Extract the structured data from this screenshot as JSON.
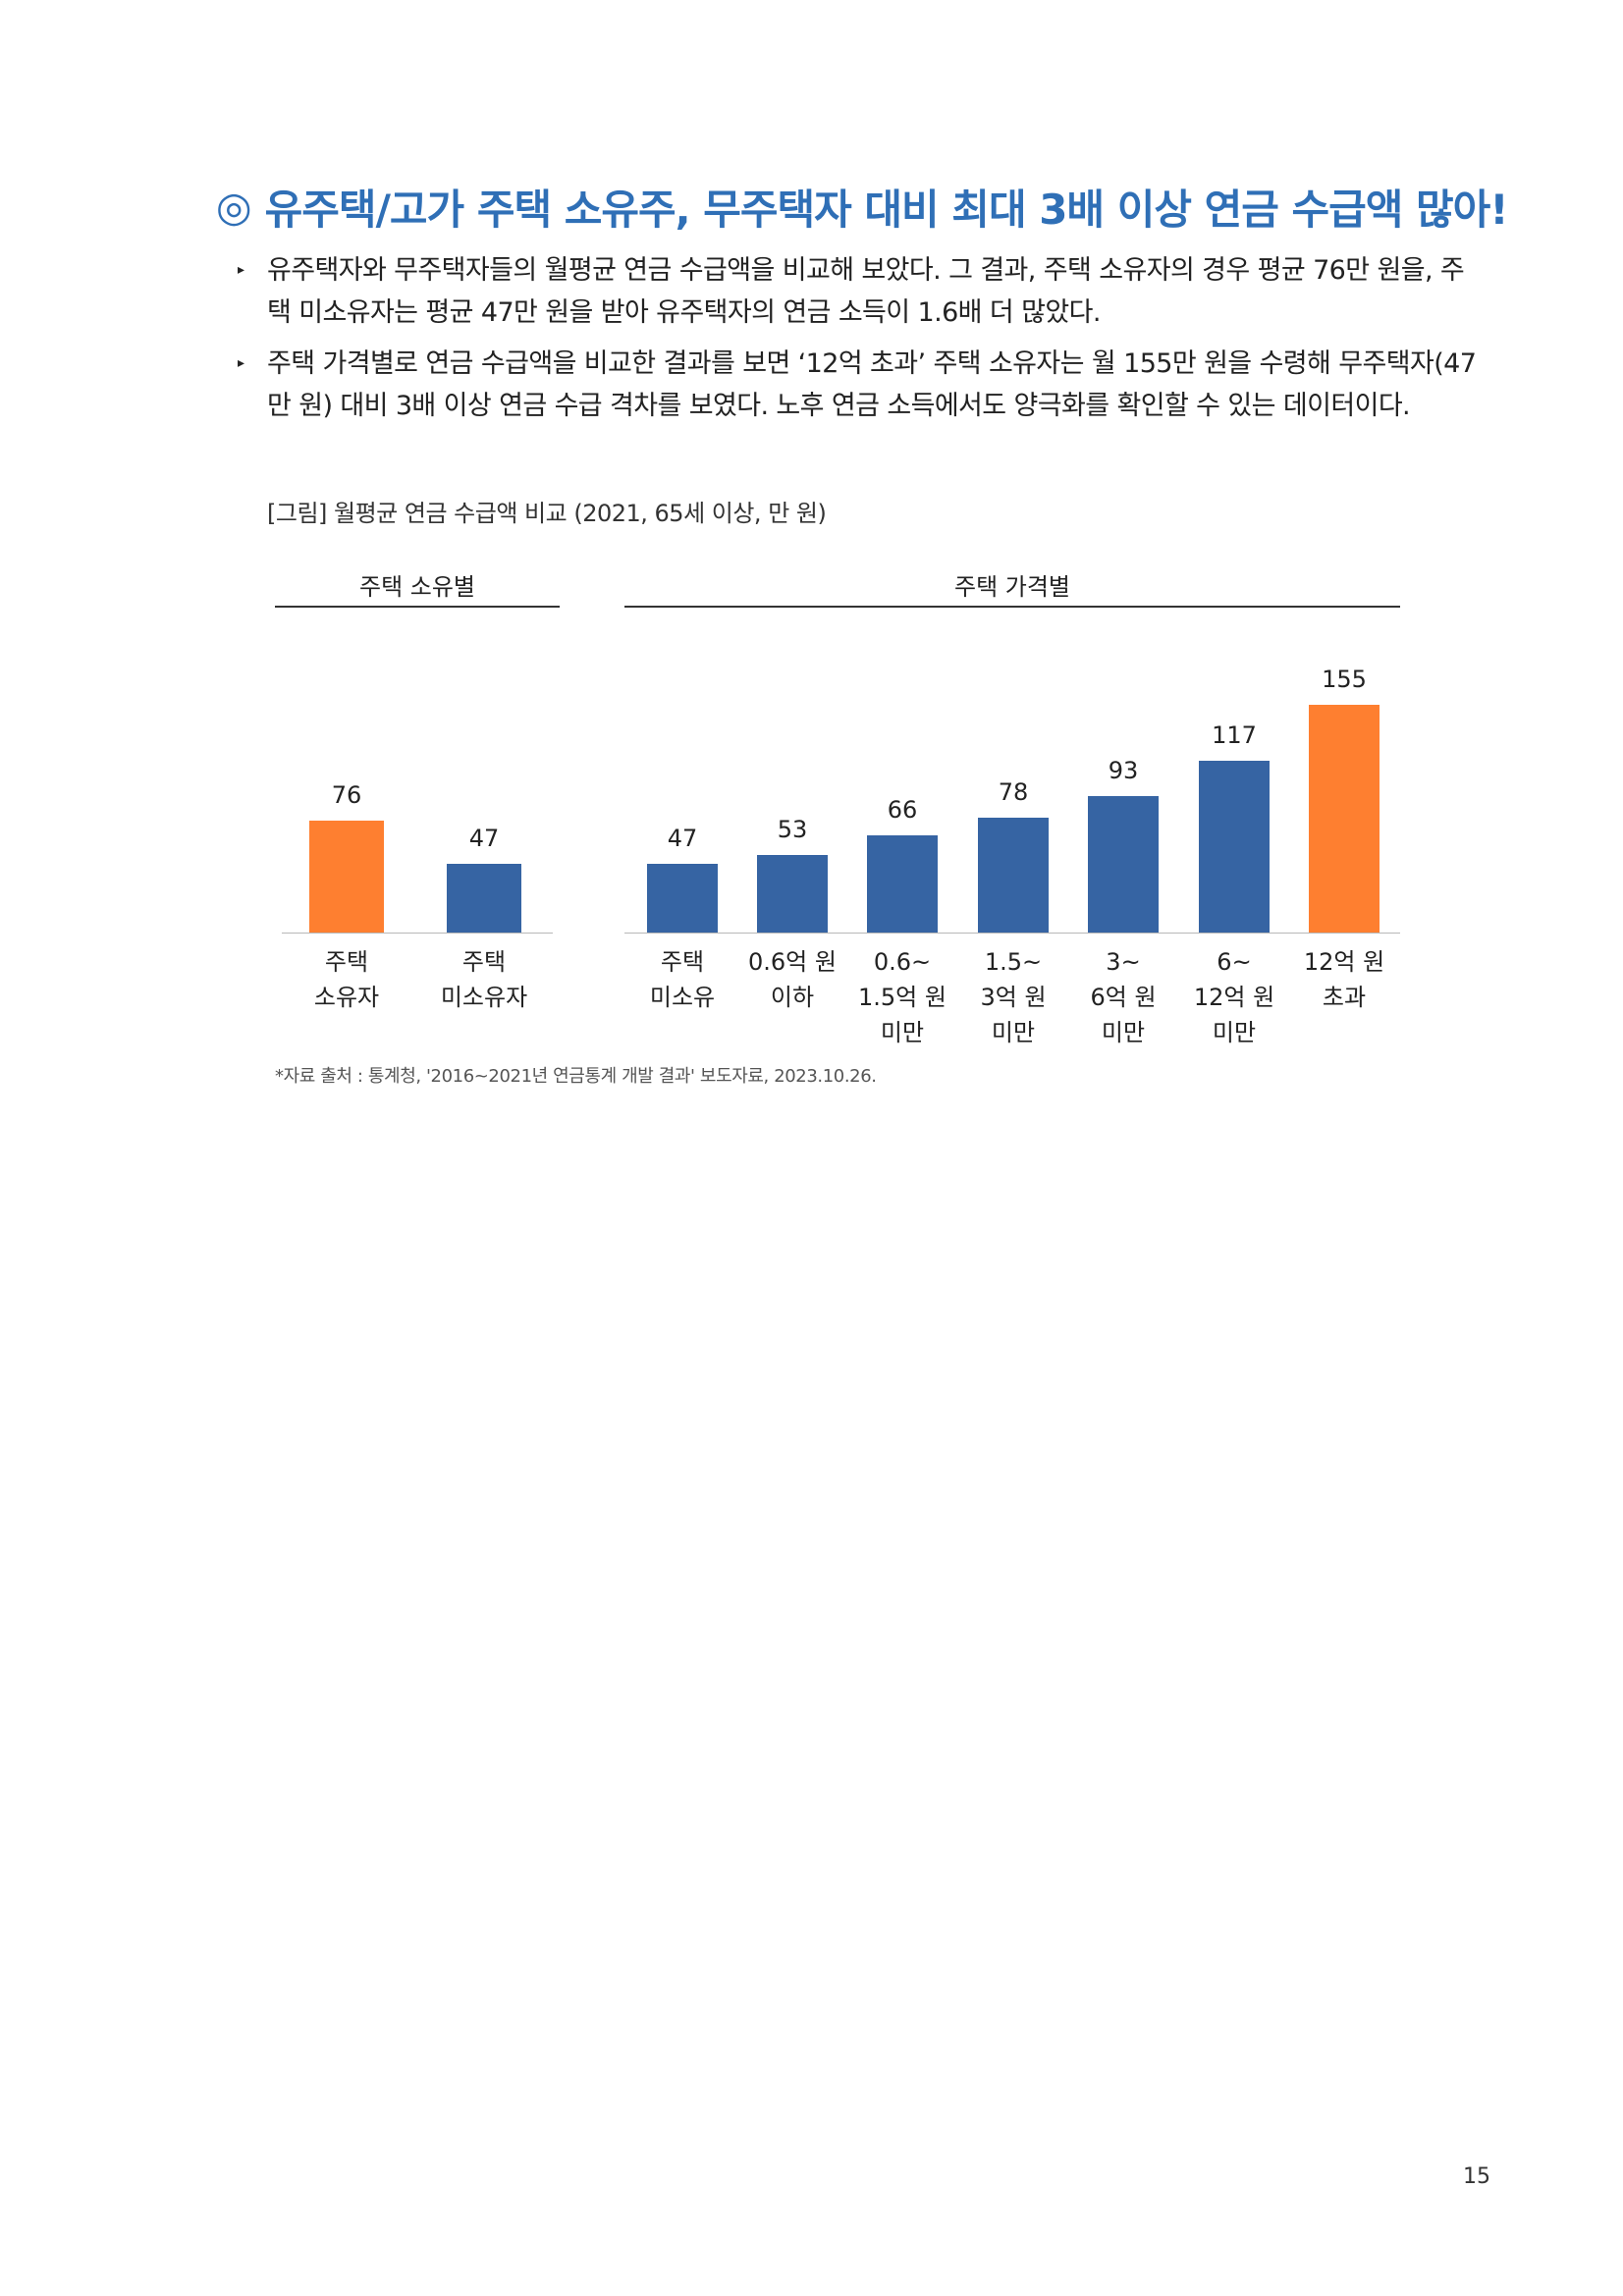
{
  "heading": {
    "mark": "◎",
    "text": "유주택/고가 주택 소유주, 무주택자 대비 최대 3배 이상 연금 수급액 많아!"
  },
  "bullets": [
    {
      "marker": "▸",
      "text": "유주택자와 무주택자들의 월평균 연금 수급액을 비교해 보았다. 그 결과, 주택 소유자의 경우 평균 76만 원을, 주택 미소유자는 평균 47만 원을 받아 유주택자의 연금 소득이 1.6배 더 많았다."
    },
    {
      "marker": "▸",
      "text": "주택 가격별로 연금 수급액을 비교한 결과를 보면 ‘12억 초과’ 주택 소유자는 월 155만 원을 수령해 무주택자(47만 원) 대비 3배 이상 연금 수급 격차를 보였다. 노후 연금 소득에서도 양극화를 확인할 수 있는 데이터이다."
    }
  ],
  "figure_caption": "[그림] 월평균 연금 수급액 비교 (2021, 65세 이상, 만 원)",
  "chart_data": [
    {
      "type": "bar",
      "title": "주택 소유별",
      "categories": [
        "주택\n소유자",
        "주택\n미소유자"
      ],
      "values": [
        76,
        47
      ],
      "colors": [
        "#fe7f30",
        "#3664a3"
      ],
      "ylim": [
        0,
        160
      ]
    },
    {
      "type": "bar",
      "title": "주택 가격별",
      "categories": [
        "주택\n미소유",
        "0.6억 원\n이하",
        "0.6~\n1.5억 원\n미만",
        "1.5~\n3억 원\n미만",
        "3~\n6억 원\n미만",
        "6~\n12억 원\n미만",
        "12억 원\n초과"
      ],
      "values": [
        47,
        53,
        66,
        78,
        93,
        117,
        155
      ],
      "colors": [
        "#3664a3",
        "#3664a3",
        "#3664a3",
        "#3664a3",
        "#3664a3",
        "#3664a3",
        "#fe7f30"
      ],
      "ylim": [
        0,
        160
      ]
    }
  ],
  "source": "*자료 출처 : 통계청, '2016~2021년 연금통계 개발 결과' 보도자료, 2023.10.26.",
  "page_number": "15"
}
